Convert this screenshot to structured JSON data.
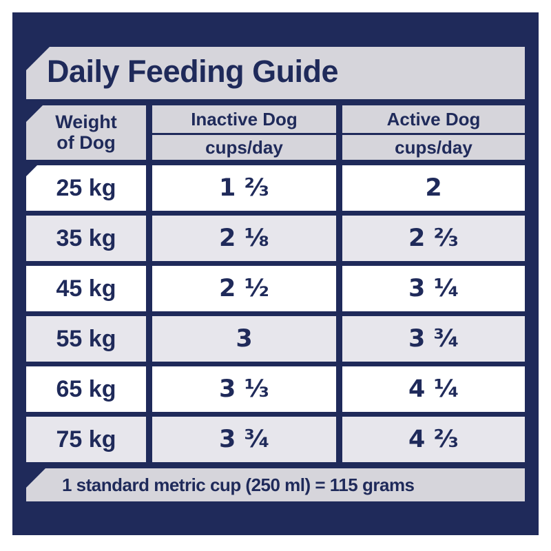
{
  "title": "Daily Feeding Guide",
  "colors": {
    "navy": "#1f2a5a",
    "banner_gray": "#d6d5db",
    "alt_row_gray": "#e7e6ec",
    "white": "#ffffff"
  },
  "table": {
    "weight_header_line1": "Weight",
    "weight_header_line2": "of Dog",
    "columns": [
      {
        "label": "Inactive Dog",
        "sublabel": "cups/day"
      },
      {
        "label": "Active Dog",
        "sublabel": "cups/day"
      }
    ],
    "rows": [
      {
        "weight": "25 kg",
        "inactive": "1 ²⁄₃",
        "active": "2"
      },
      {
        "weight": "35 kg",
        "inactive": "2 ¹⁄₈",
        "active": "2 ²⁄₃"
      },
      {
        "weight": "45 kg",
        "inactive": "2 ¹⁄₂",
        "active": "3 ¹⁄₄"
      },
      {
        "weight": "55 kg",
        "inactive": "3",
        "active": "3 ³⁄₄"
      },
      {
        "weight": "65 kg",
        "inactive": "3 ¹⁄₃",
        "active": "4 ¹⁄₄"
      },
      {
        "weight": "75 kg",
        "inactive": "3 ³⁄₄",
        "active": "4 ²⁄₃"
      }
    ]
  },
  "footer_note": "1 standard metric cup (250 ml) = 115 grams",
  "chart_data": {
    "type": "table",
    "title": "Daily Feeding Guide",
    "columns": [
      "Weight of Dog",
      "Inactive Dog cups/day",
      "Active Dog cups/day"
    ],
    "rows": [
      [
        "25 kg",
        "1 2/3",
        "2"
      ],
      [
        "35 kg",
        "2 1/8",
        "2 2/3"
      ],
      [
        "45 kg",
        "2 1/2",
        "3 1/4"
      ],
      [
        "55 kg",
        "3",
        "3 3/4"
      ],
      [
        "65 kg",
        "3 1/3",
        "4 1/4"
      ],
      [
        "75 kg",
        "3 3/4",
        "4 2/3"
      ]
    ],
    "note": "1 standard metric cup (250 ml) = 115 grams"
  }
}
